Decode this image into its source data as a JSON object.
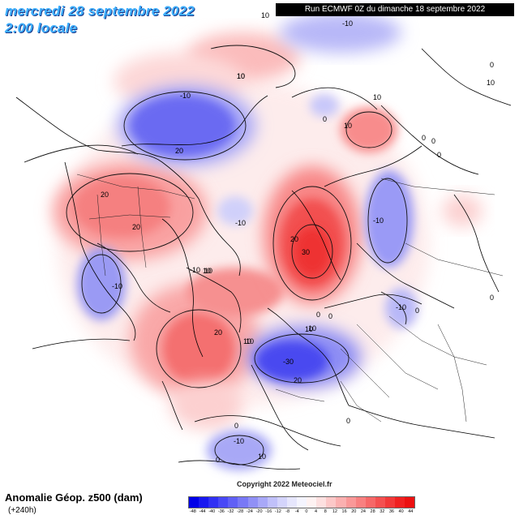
{
  "header": {
    "date_title": "mercredi 28 septembre 2022",
    "time_title": "2:00 locale",
    "run_info": "Run ECMWF 0Z du dimanche 18 septembre 2022"
  },
  "footer": {
    "variable_title": "Anomalie Géop. z500 (dam)",
    "lead_time": "(+240h)",
    "copyright": "Copyright 2022 Meteociel.fr"
  },
  "legend": {
    "ticks": [
      "-48",
      "-44",
      "-40",
      "-36",
      "-32",
      "-28",
      "-24",
      "-20",
      "-16",
      "-12",
      "-8",
      "-4",
      "0",
      "4",
      "8",
      "12",
      "16",
      "20",
      "24",
      "28",
      "32",
      "36",
      "40",
      "44"
    ],
    "colors": [
      "#0000e8",
      "#1818f0",
      "#3030f4",
      "#4848f6",
      "#6060f6",
      "#7878f6",
      "#9090f6",
      "#a8a8f8",
      "#c0c0fa",
      "#d4d4fc",
      "#e6e6fd",
      "#f4f4fe",
      "#fef2f2",
      "#fde0e0",
      "#fcc8c8",
      "#fbb0b0",
      "#fa9898",
      "#f88080",
      "#f66868",
      "#f45050",
      "#f23838",
      "#f02020",
      "#ec1010"
    ]
  },
  "map_labels": {
    "contours": [
      "10",
      "10",
      "-10",
      "0",
      "-10",
      "20",
      "10",
      "10",
      "0",
      "0",
      "0",
      "0",
      "20",
      "-10",
      "-10",
      "20",
      "30",
      "20",
      "10",
      "10",
      "10",
      "0",
      "0",
      "-10",
      "0",
      "-10",
      "0",
      "0",
      "0",
      "-10",
      "10",
      "0",
      "-30",
      "20",
      "20",
      "-10",
      "10",
      "10",
      "10",
      "10",
      "10"
    ]
  },
  "colors": {
    "positive_anomaly": "#f46060",
    "negative_anomaly": "#5a5af0",
    "title_blue": "#3fb0ff"
  }
}
